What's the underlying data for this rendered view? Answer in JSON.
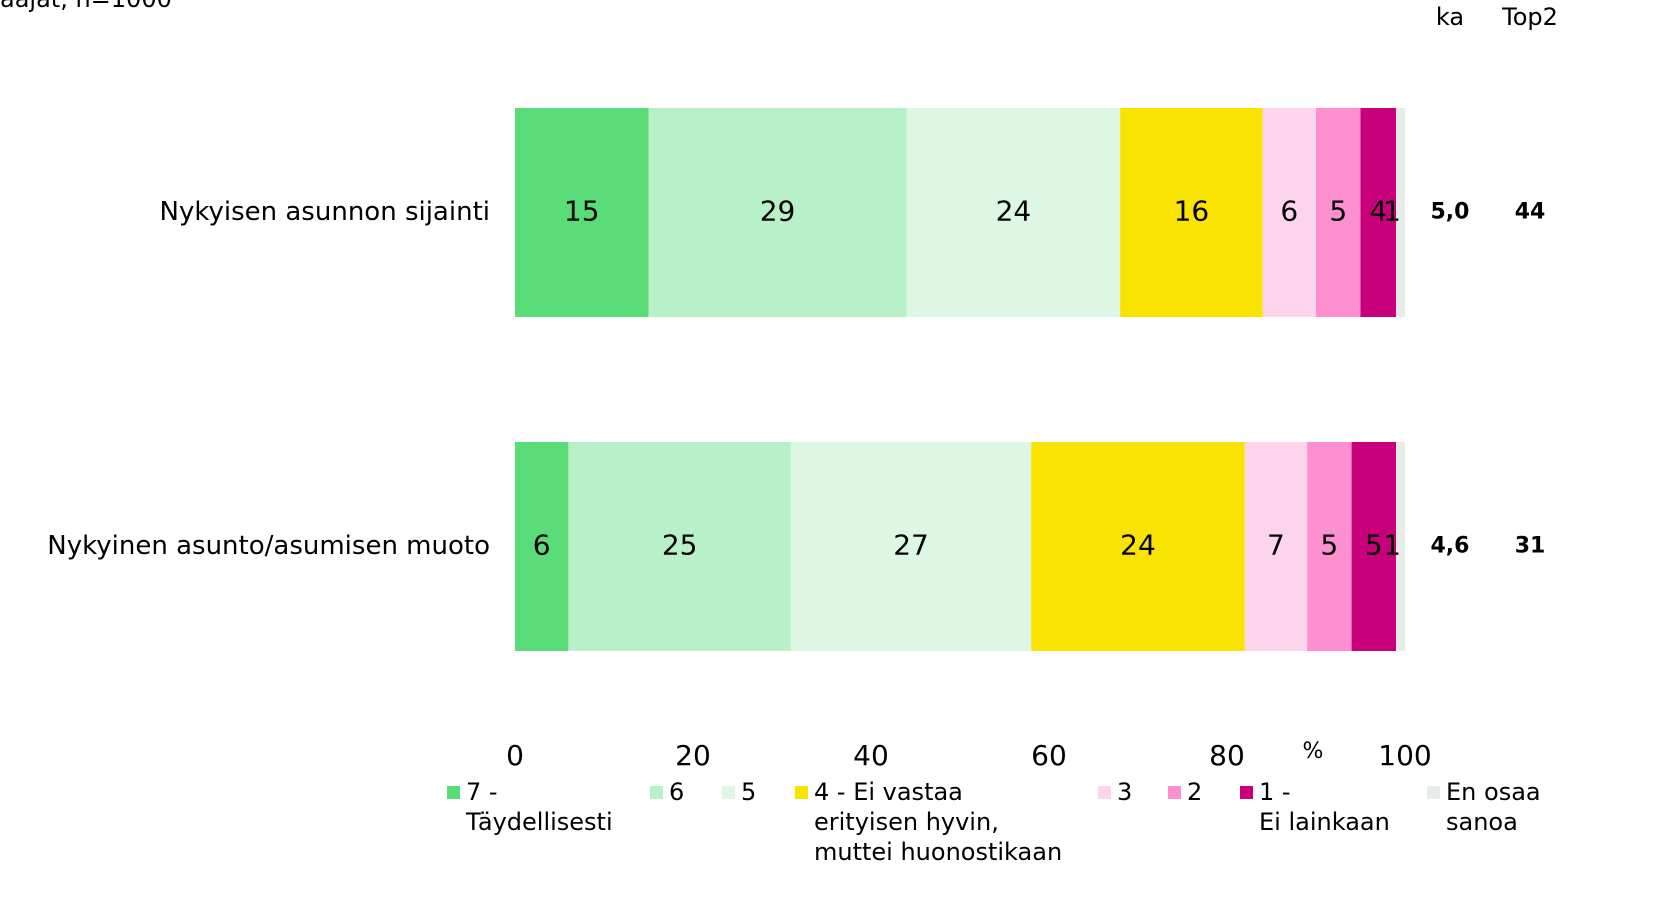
{
  "chart_data": {
    "type": "stacked_barh",
    "subtitle": "aajat, n=1000",
    "categories": [
      "Nykyisen asunnon sijainti",
      "Nykyinen asunto/asumisen muoto"
    ],
    "series": [
      {
        "name": "7 - Täydellisesti",
        "color": "#5adc78",
        "values": [
          15,
          6
        ]
      },
      {
        "name": "6",
        "color": "#b8f0c8",
        "values": [
          29,
          25
        ]
      },
      {
        "name": "5",
        "color": "#dcf8e4",
        "values": [
          24,
          27
        ]
      },
      {
        "name": "4 - Ei vastaa erityisen hyvin, muttei huonostikaan",
        "color": "#f8e400",
        "values": [
          16,
          24
        ]
      },
      {
        "name": "3",
        "color": "#fcd4ec",
        "values": [
          6,
          7
        ]
      },
      {
        "name": "2",
        "color": "#fc90d0",
        "values": [
          5,
          5
        ]
      },
      {
        "name": "1 - Ei lainkaan",
        "color": "#c8007c",
        "values": [
          4,
          5
        ]
      },
      {
        "name": "En osaa sanoa",
        "color": "#e8ece8",
        "values": [
          1,
          1
        ]
      }
    ],
    "xlim": [
      0,
      100
    ],
    "xticks": [
      0,
      20,
      40,
      60,
      80,
      100
    ],
    "xlabel": "%",
    "side_columns": {
      "headers": [
        "ka",
        "Top2"
      ],
      "ka": [
        "5,0",
        "4,6"
      ],
      "top2": [
        44,
        31
      ]
    }
  }
}
